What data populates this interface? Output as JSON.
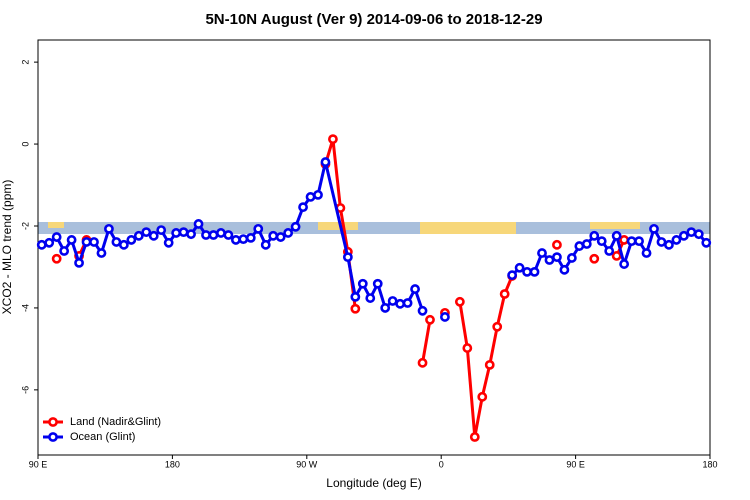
{
  "chart_data": {
    "type": "line",
    "title": "5N-10N August (Ver 9)   2014-09-06 to 2018-12-29",
    "xlabel": "Longitude (deg E)",
    "ylabel": "XCO2 - MLO trend (ppm)",
    "xlim": [
      -270,
      180
    ],
    "ylim": [
      -7.59,
      2.54
    ],
    "xticks": [
      {
        "value": -270,
        "label": "90 E"
      },
      {
        "value": -180,
        "label": "180"
      },
      {
        "value": -90,
        "label": "90 W"
      },
      0,
      {
        "value": 90,
        "label": "90 E"
      },
      180
    ],
    "yticks": [
      -6,
      -4,
      -2,
      0,
      2
    ],
    "grid": false,
    "legend": "bottom-left",
    "series": [
      {
        "name": "Land (Nadir&Glint)",
        "color": "#ff0000",
        "x": [
          -257.5,
          -247.5,
          -242.5,
          -237.5,
          -232.5,
          -77.5,
          -72.5,
          -67.5,
          -62.5,
          -57.5,
          -52.5,
          -12.5,
          -7.5,
          -2.5,
          2.5,
          7.5,
          12.5,
          17.5,
          22.5,
          27.5,
          32.5,
          37.5,
          42.5,
          47.5,
          52.5,
          77.5,
          82.5,
          102.5,
          107.5,
          117.5,
          122.5
        ],
        "values": [
          -2.8,
          null,
          -2.73,
          -2.34,
          null,
          -0.49,
          0.12,
          -1.56,
          -2.63,
          -4.02,
          null,
          -5.34,
          -4.29,
          null,
          -4.12,
          null,
          -3.85,
          -4.98,
          -7.15,
          -6.17,
          -5.39,
          -4.46,
          -3.66,
          -3.22,
          null,
          -2.46,
          null,
          -2.8,
          null,
          -2.73,
          -2.34
        ]
      },
      {
        "name": "Ocean (Glint)",
        "color": "#0000ee",
        "x": [
          -267.5,
          -262.5,
          -257.5,
          -252.5,
          -247.5,
          -242.5,
          -237.5,
          -232.5,
          -227.5,
          -222.5,
          -217.5,
          -212.5,
          -207.5,
          -202.5,
          -197.5,
          -192.5,
          -187.5,
          -182.5,
          -177.5,
          -172.5,
          -167.5,
          -162.5,
          -157.5,
          -152.5,
          -147.5,
          -142.5,
          -137.5,
          -132.5,
          -127.5,
          -122.5,
          -117.5,
          -112.5,
          -107.5,
          -102.5,
          -97.5,
          -92.5,
          -87.5,
          -82.5,
          -77.5,
          -62.5,
          -57.5,
          -52.5,
          -47.5,
          -42.5,
          -37.5,
          -32.5,
          -27.5,
          -22.5,
          -17.5,
          -12.5,
          -7.5,
          2.5,
          7.5,
          47.5,
          52.5,
          57.5,
          62.5,
          67.5,
          72.5,
          77.5,
          82.5,
          87.5,
          92.5,
          97.5,
          102.5,
          107.5,
          112.5,
          117.5,
          122.5,
          127.5,
          132.5,
          137.5,
          142.5,
          147.5,
          152.5,
          157.5,
          162.5,
          167.5,
          172.5,
          177.5
        ],
        "values": [
          -2.46,
          -2.41,
          -2.27,
          -2.61,
          -2.34,
          -2.9,
          -2.39,
          -2.39,
          -2.66,
          -2.07,
          -2.39,
          -2.46,
          -2.34,
          -2.24,
          -2.15,
          -2.24,
          -2.1,
          -2.41,
          -2.17,
          -2.15,
          -2.2,
          -1.95,
          -2.22,
          -2.22,
          -2.17,
          -2.22,
          -2.34,
          -2.32,
          -2.29,
          -2.07,
          -2.46,
          -2.24,
          -2.27,
          -2.17,
          -2.02,
          -1.54,
          -1.29,
          -1.24,
          -0.44,
          -2.76,
          -3.73,
          -3.41,
          -3.76,
          -3.41,
          -4.0,
          -3.83,
          -3.9,
          -3.88,
          -3.54,
          -4.07,
          null,
          -4.22,
          null,
          -3.2,
          -3.02,
          -3.12,
          -3.12,
          -2.66,
          -2.83,
          -2.76,
          -3.07,
          -2.78,
          -2.49,
          -2.44,
          -2.24,
          -2.37,
          -2.61,
          -2.24,
          -2.93,
          -2.37,
          -2.37,
          -2.66,
          -2.07,
          -2.39,
          -2.46,
          -2.34,
          -2.24,
          -2.15,
          -2.2,
          -2.41
        ]
      }
    ]
  }
}
